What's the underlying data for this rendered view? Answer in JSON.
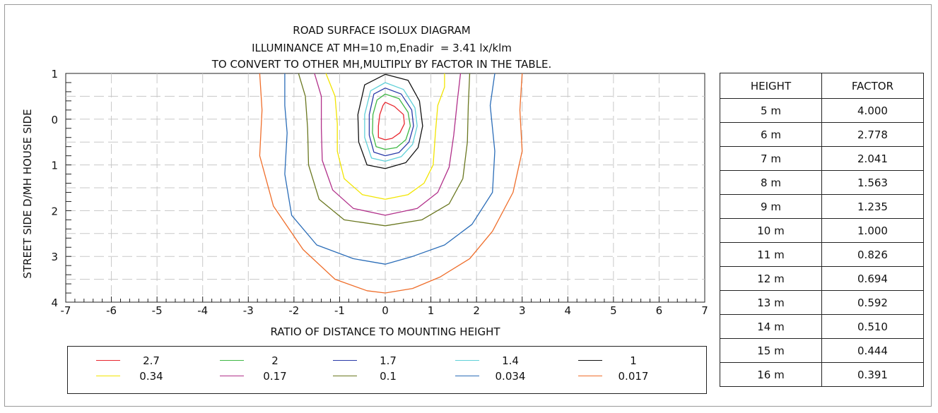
{
  "titles": [
    "ROAD SURFACE ISOLUX DIAGRAM",
    "ILLUMINANCE AT MH=10 m,Enadir  = 3.41 lx/klm",
    "TO CONVERT TO OTHER MH,MULTIPLY BY FACTOR IN THE TABLE."
  ],
  "chart_data": {
    "type": "line",
    "xlabel": "RATIO OF DISTANCE TO MOUNTING HEIGHT",
    "ylabel": "STREET SIDE  D/MH  HOUSE SIDE",
    "xlim": [
      -7,
      7
    ],
    "ylim": [
      -1,
      4
    ],
    "x_ticks": [
      "-7",
      "-6",
      "-5",
      "-4",
      "-3",
      "-2",
      "-1",
      "0",
      "1",
      "2",
      "3",
      "4",
      "5",
      "6",
      "7"
    ],
    "y_tick_values": [
      -1,
      0,
      1,
      2,
      3,
      4
    ],
    "y_tick_labels": [
      "1",
      "0",
      "1",
      "2",
      "3",
      "4"
    ],
    "grid": true,
    "series": [
      {
        "name": "2.7",
        "color": "#e8262e",
        "points": [
          [
            0,
            -0.37
          ],
          [
            0.2,
            -0.28
          ],
          [
            0.4,
            -0.1
          ],
          [
            0.42,
            0.1
          ],
          [
            0.32,
            0.3
          ],
          [
            0.15,
            0.42
          ],
          [
            0,
            0.45
          ],
          [
            -0.15,
            0.4
          ],
          [
            -0.15,
            0.15
          ],
          [
            -0.12,
            -0.1
          ],
          [
            -0.05,
            -0.3
          ],
          [
            0,
            -0.37
          ]
        ]
      },
      {
        "name": "2",
        "color": "#3fb845",
        "points": [
          [
            0,
            -0.55
          ],
          [
            0.3,
            -0.45
          ],
          [
            0.5,
            -0.15
          ],
          [
            0.55,
            0.15
          ],
          [
            0.45,
            0.45
          ],
          [
            0.25,
            0.62
          ],
          [
            0,
            0.66
          ],
          [
            -0.2,
            0.6
          ],
          [
            -0.28,
            0.3
          ],
          [
            -0.27,
            -0.1
          ],
          [
            -0.18,
            -0.42
          ],
          [
            0,
            -0.55
          ]
        ]
      },
      {
        "name": "1.7",
        "color": "#2a3aa8",
        "points": [
          [
            0,
            -0.68
          ],
          [
            0.35,
            -0.55
          ],
          [
            0.58,
            -0.2
          ],
          [
            0.62,
            0.15
          ],
          [
            0.52,
            0.5
          ],
          [
            0.3,
            0.73
          ],
          [
            0,
            0.8
          ],
          [
            -0.25,
            0.72
          ],
          [
            -0.35,
            0.35
          ],
          [
            -0.35,
            -0.1
          ],
          [
            -0.25,
            -0.55
          ],
          [
            0,
            -0.68
          ]
        ]
      },
      {
        "name": "1.4",
        "color": "#5fd0d8",
        "points": [
          [
            0,
            -0.8
          ],
          [
            0.4,
            -0.65
          ],
          [
            0.65,
            -0.25
          ],
          [
            0.7,
            0.15
          ],
          [
            0.6,
            0.55
          ],
          [
            0.35,
            0.82
          ],
          [
            0,
            0.92
          ],
          [
            -0.3,
            0.85
          ],
          [
            -0.45,
            0.4
          ],
          [
            -0.45,
            -0.1
          ],
          [
            -0.32,
            -0.62
          ],
          [
            0,
            -0.8
          ]
        ]
      },
      {
        "name": "1",
        "color": "#111111",
        "points": [
          [
            0,
            -0.98
          ],
          [
            0.5,
            -0.85
          ],
          [
            0.75,
            -0.4
          ],
          [
            0.82,
            0.15
          ],
          [
            0.72,
            0.62
          ],
          [
            0.45,
            0.95
          ],
          [
            0,
            1.08
          ],
          [
            -0.4,
            1.0
          ],
          [
            -0.58,
            0.5
          ],
          [
            -0.6,
            -0.1
          ],
          [
            -0.45,
            -0.75
          ],
          [
            0,
            -0.98
          ]
        ]
      },
      {
        "name": "0.34",
        "color": "#f2e500",
        "points": [
          [
            -1.3,
            -1
          ],
          [
            -1.1,
            -0.5
          ],
          [
            -1.05,
            0.1
          ],
          [
            -1.05,
            0.7
          ],
          [
            -0.9,
            1.3
          ],
          [
            -0.5,
            1.65
          ],
          [
            0,
            1.75
          ],
          [
            0.5,
            1.65
          ],
          [
            0.85,
            1.4
          ],
          [
            1.05,
            1.0
          ],
          [
            1.1,
            0.3
          ],
          [
            1.15,
            -0.3
          ],
          [
            1.3,
            -0.7
          ],
          [
            1.3,
            -1
          ]
        ]
      },
      {
        "name": "0.17",
        "color": "#b1308a",
        "points": [
          [
            -1.55,
            -1
          ],
          [
            -1.4,
            -0.5
          ],
          [
            -1.4,
            0.2
          ],
          [
            -1.38,
            0.9
          ],
          [
            -1.15,
            1.55
          ],
          [
            -0.7,
            1.95
          ],
          [
            0,
            2.1
          ],
          [
            0.7,
            1.95
          ],
          [
            1.15,
            1.6
          ],
          [
            1.4,
            1.05
          ],
          [
            1.5,
            0.35
          ],
          [
            1.58,
            -0.4
          ],
          [
            1.65,
            -1
          ]
        ]
      },
      {
        "name": "0.1",
        "color": "#6a7720",
        "points": [
          [
            -1.9,
            -1
          ],
          [
            -1.75,
            -0.5
          ],
          [
            -1.7,
            0.2
          ],
          [
            -1.68,
            1.0
          ],
          [
            -1.45,
            1.75
          ],
          [
            -0.9,
            2.2
          ],
          [
            0,
            2.33
          ],
          [
            0.8,
            2.2
          ],
          [
            1.4,
            1.85
          ],
          [
            1.7,
            1.3
          ],
          [
            1.8,
            0.5
          ],
          [
            1.82,
            -0.3
          ],
          [
            1.85,
            -1
          ]
        ]
      },
      {
        "name": "0.034",
        "color": "#2b6db8",
        "points": [
          [
            -2.2,
            -1
          ],
          [
            -2.2,
            -0.3
          ],
          [
            -2.15,
            0.3
          ],
          [
            -2.2,
            1.2
          ],
          [
            -2.05,
            2.1
          ],
          [
            -1.5,
            2.75
          ],
          [
            -0.7,
            3.05
          ],
          [
            0,
            3.17
          ],
          [
            0.6,
            3.0
          ],
          [
            1.3,
            2.75
          ],
          [
            1.9,
            2.3
          ],
          [
            2.35,
            1.6
          ],
          [
            2.4,
            0.7
          ],
          [
            2.3,
            -0.3
          ],
          [
            2.4,
            -1
          ]
        ]
      },
      {
        "name": "0.017",
        "color": "#ef6e2b",
        "points": [
          [
            -2.75,
            -1
          ],
          [
            -2.7,
            -0.2
          ],
          [
            -2.75,
            0.8
          ],
          [
            -2.45,
            1.9
          ],
          [
            -1.8,
            2.85
          ],
          [
            -1.1,
            3.5
          ],
          [
            -0.4,
            3.75
          ],
          [
            0,
            3.8
          ],
          [
            0.6,
            3.7
          ],
          [
            1.2,
            3.45
          ],
          [
            1.85,
            3.05
          ],
          [
            2.35,
            2.45
          ],
          [
            2.8,
            1.6
          ],
          [
            3.0,
            0.7
          ],
          [
            2.95,
            -0.2
          ],
          [
            3.0,
            -1
          ]
        ]
      }
    ]
  },
  "legend": {
    "columns": [
      [
        "2.7",
        "0.34"
      ],
      [
        "2",
        "0.17"
      ],
      [
        "1.7",
        "0.1"
      ],
      [
        "1.4",
        "0.034"
      ],
      [
        "1",
        "0.017"
      ]
    ]
  },
  "factor_table": {
    "headers": [
      "HEIGHT",
      "FACTOR"
    ],
    "rows": [
      [
        "5 m",
        "4.000"
      ],
      [
        "6 m",
        "2.778"
      ],
      [
        "7 m",
        "2.041"
      ],
      [
        "8 m",
        "1.563"
      ],
      [
        "9 m",
        "1.235"
      ],
      [
        "10 m",
        "1.000"
      ],
      [
        "11 m",
        "0.826"
      ],
      [
        "12 m",
        "0.694"
      ],
      [
        "13 m",
        "0.592"
      ],
      [
        "14 m",
        "0.510"
      ],
      [
        "15 m",
        "0.444"
      ],
      [
        "16 m",
        "0.391"
      ]
    ]
  }
}
